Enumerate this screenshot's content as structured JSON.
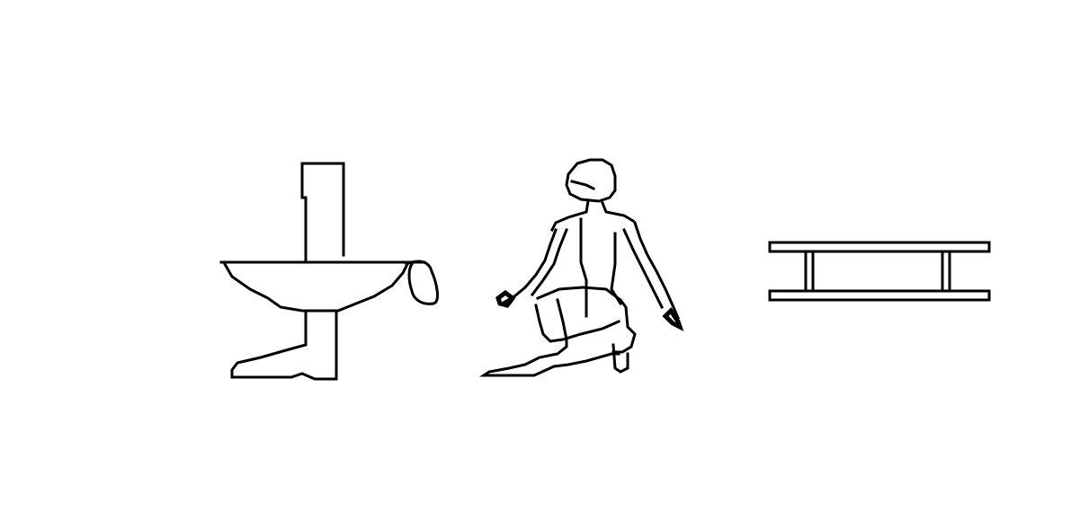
{
  "glyphs": [
    {
      "name": "heart-trachea-glyph",
      "icon": "heart-and-trachea-hieroglyph"
    },
    {
      "name": "kneeling-man-glyph",
      "icon": "kneeling-man-hieroglyph"
    },
    {
      "name": "door-bolt-glyph",
      "icon": "door-bolt-hieroglyph"
    }
  ],
  "colors": {
    "background": "#ffffff",
    "ink": "#000000"
  }
}
